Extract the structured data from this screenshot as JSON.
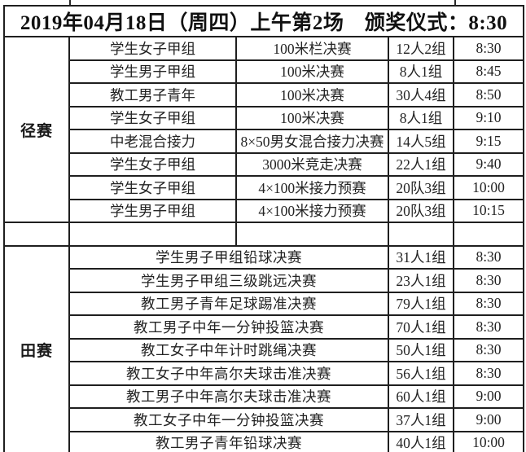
{
  "title": "2019年04月18日（周四）上午第2场　颁奖仪式：8:30",
  "sections": [
    {
      "label": "径赛",
      "rows": [
        {
          "group": "学生女子甲组",
          "event": "100米栏决赛",
          "entrants": "12人2组",
          "time": "8:30"
        },
        {
          "group": "学生男子甲组",
          "event": "100米决赛",
          "entrants": "8人1组",
          "time": "8:45"
        },
        {
          "group": "教工男子青年",
          "event": "100米决赛",
          "entrants": "30人4组",
          "time": "8:50"
        },
        {
          "group": "学生女子甲组",
          "event": "100米决赛",
          "entrants": "8人1组",
          "time": "9:10"
        },
        {
          "group": "中老混合接力",
          "event": "8×50男女混合接力决赛",
          "entrants": "14人5组",
          "time": "9:15"
        },
        {
          "group": "学生女子甲组",
          "event": "3000米竞走决赛",
          "entrants": "22人1组",
          "time": "9:40"
        },
        {
          "group": "学生女子甲组",
          "event": "4×100米接力预赛",
          "entrants": "20队3组",
          "time": "10:00"
        },
        {
          "group": "学生男子甲组",
          "event": "4×100米接力预赛",
          "entrants": "20队3组",
          "time": "10:15"
        }
      ]
    },
    {
      "label": "田赛",
      "rows": [
        {
          "event": "学生男子甲组铅球决赛",
          "entrants": "31人1组",
          "time": "8:30"
        },
        {
          "event": "学生男子甲组三级跳远决赛",
          "entrants": "23人1组",
          "time": "8:30"
        },
        {
          "event": "教工男子青年足球踢准决赛",
          "entrants": "79人1组",
          "time": "8:30"
        },
        {
          "event": "教工男子中年一分钟投篮决赛",
          "entrants": "70人1组",
          "time": "8:30"
        },
        {
          "event": "教工女子中年计时跳绳决赛",
          "entrants": "50人1组",
          "time": "8:30"
        },
        {
          "event": "教工女子中年高尔夫球击准决赛",
          "entrants": "56人1组",
          "time": "8:30"
        },
        {
          "event": "教工男子中年高尔夫球击准决赛",
          "entrants": "60人1组",
          "time": "9:00"
        },
        {
          "event": "教工女子中年一分钟投篮决赛",
          "entrants": "37人1组",
          "time": "9:00"
        },
        {
          "event": "教工男子青年铅球决赛",
          "entrants": "40人1组",
          "time": "10:00"
        }
      ]
    }
  ]
}
